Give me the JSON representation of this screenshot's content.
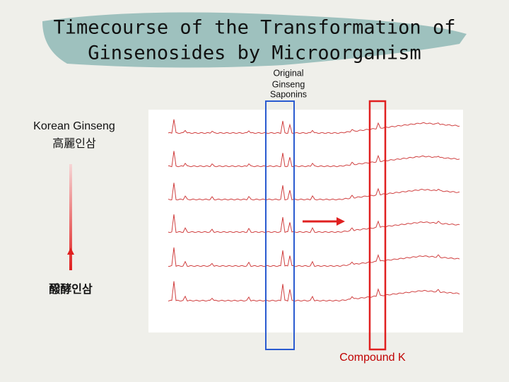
{
  "title": {
    "lines": [
      "Timecourse of the Transformation of",
      "Ginsenosides by Microorganism"
    ]
  },
  "original_label": [
    "Original",
    "Ginseng",
    "Saponins"
  ],
  "top_label": {
    "name": "Korean Ginseng",
    "hanja": "高麗인삼"
  },
  "bottom_label": "醱酵인삼",
  "compound_label": "Compound K"
}
